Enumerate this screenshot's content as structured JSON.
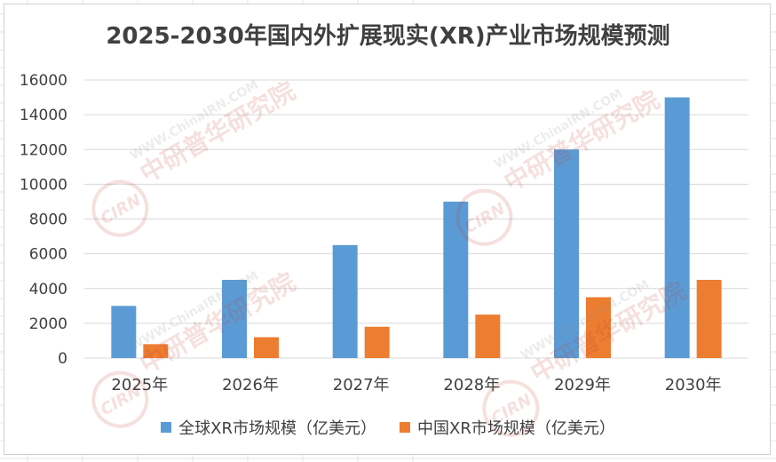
{
  "chart_data": {
    "type": "bar",
    "title": "2025-2030年国内外扩展现实(XR)产业市场规模预测",
    "categories": [
      "2025年",
      "2026年",
      "2027年",
      "2028年",
      "2029年",
      "2030年"
    ],
    "series": [
      {
        "name": "全球XR市场规模（亿美元）",
        "color": "#5b9bd5",
        "values": [
          3000,
          4500,
          6500,
          9000,
          12000,
          15000
        ]
      },
      {
        "name": "中国XR市场规模（亿美元）",
        "color": "#ed7d31",
        "values": [
          800,
          1200,
          1800,
          2500,
          3500,
          4500
        ]
      }
    ],
    "y_ticks": [
      "0",
      "2000",
      "4000",
      "6000",
      "8000",
      "10000",
      "12000",
      "14000",
      "16000"
    ],
    "ylim": [
      0,
      16000
    ],
    "grid": true,
    "legend_position": "bottom"
  },
  "watermark": {
    "url_text": "WWW.ChinaIRN.COM",
    "org_text": "中研普华研究院",
    "logo_text": "CIRN",
    "color": "#c0392b"
  }
}
